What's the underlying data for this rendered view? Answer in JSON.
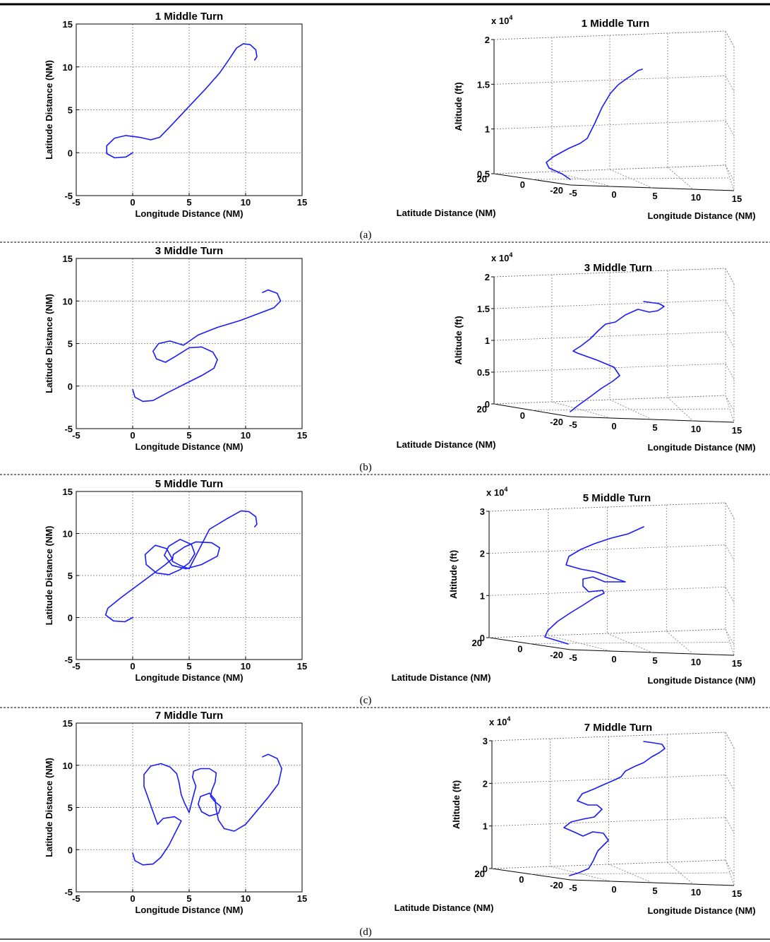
{
  "panels": [
    {
      "caption": "(a)"
    },
    {
      "caption": "(b)"
    },
    {
      "caption": "(c)"
    },
    {
      "caption": "(d)"
    }
  ],
  "chart_data": [
    {
      "type": "line",
      "title": "1 Middle Turn",
      "xlabel": "Longitude Distance (NM)",
      "ylabel": "Latitude Distance (NM)",
      "xlim": [
        -5,
        15
      ],
      "ylim": [
        -5,
        15
      ],
      "xticks": [
        "-5",
        "0",
        "5",
        "10",
        "15"
      ],
      "yticks": [
        "-5",
        "0",
        "5",
        "10",
        "15"
      ],
      "grid": true,
      "series": [
        {
          "color": "#1a1aff",
          "points": [
            [
              0,
              0
            ],
            [
              -0.6,
              -0.5
            ],
            [
              -1.6,
              -0.6
            ],
            [
              -2.3,
              -0.1
            ],
            [
              -2.3,
              0.8
            ],
            [
              -1.6,
              1.7
            ],
            [
              -0.6,
              2.0
            ],
            [
              0.6,
              1.8
            ],
            [
              1.6,
              1.5
            ],
            [
              2.4,
              1.8
            ],
            [
              3.5,
              3.3
            ],
            [
              5,
              5.4
            ],
            [
              6.5,
              7.5
            ],
            [
              7.7,
              9.3
            ],
            [
              8.6,
              11
            ],
            [
              9.2,
              12.2
            ],
            [
              9.8,
              12.7
            ],
            [
              10.4,
              12.6
            ],
            [
              10.9,
              12
            ],
            [
              11,
              11.2
            ],
            [
              10.8,
              10.8
            ]
          ]
        }
      ]
    },
    {
      "type": "line",
      "title": "1 Middle Turn",
      "xlabel": "Longitude Distance (NM)",
      "ylabel": "Latitude Distance (NM)",
      "zlabel": "Altitude (ft)",
      "zexponent": "x 10^4",
      "xticks": [
        "-5",
        "0",
        "5",
        "10",
        "15"
      ],
      "yticks": [
        "-20",
        "0",
        "20"
      ],
      "zticks": [
        "0.5",
        "1",
        "1.5",
        "2"
      ],
      "zlim": [
        0.5,
        2
      ],
      "grid": true
    },
    {
      "type": "line",
      "title": "3 Middle Turn",
      "xlabel": "Longitude Distance (NM)",
      "ylabel": "Latitude Distance (NM)",
      "xlim": [
        -5,
        15
      ],
      "ylim": [
        -5,
        15
      ],
      "xticks": [
        "-5",
        "0",
        "5",
        "10",
        "15"
      ],
      "yticks": [
        "-5",
        "0",
        "5",
        "10",
        "15"
      ],
      "grid": true,
      "series": [
        {
          "color": "#1a1aff",
          "points": [
            [
              0,
              -0.4
            ],
            [
              0.2,
              -1.3
            ],
            [
              0.9,
              -1.8
            ],
            [
              1.8,
              -1.7
            ],
            [
              3.2,
              -0.7
            ],
            [
              4.7,
              0.3
            ],
            [
              6.2,
              1.3
            ],
            [
              7.2,
              2.1
            ],
            [
              7.5,
              3.1
            ],
            [
              7.1,
              4
            ],
            [
              6.1,
              4.6
            ],
            [
              5,
              4.5
            ],
            [
              3.8,
              3.5
            ],
            [
              2.9,
              2.8
            ],
            [
              2.1,
              3.2
            ],
            [
              1.8,
              4.1
            ],
            [
              2.3,
              5
            ],
            [
              3.3,
              5.3
            ],
            [
              4.5,
              4.8
            ],
            [
              5.8,
              6
            ],
            [
              7.5,
              6.9
            ],
            [
              9.5,
              7.7
            ],
            [
              11.3,
              8.6
            ],
            [
              12.5,
              9.2
            ],
            [
              13.1,
              10
            ],
            [
              12.8,
              10.9
            ],
            [
              12,
              11.3
            ],
            [
              11.5,
              11
            ]
          ]
        }
      ]
    },
    {
      "type": "line",
      "title": "3 Middle Turn",
      "xlabel": "Longitude Distance (NM)",
      "ylabel": "Latitude Distance (NM)",
      "zlabel": "Altitude (ft)",
      "zexponent": "x 10^4",
      "xticks": [
        "-5",
        "0",
        "5",
        "10",
        "15"
      ],
      "yticks": [
        "-20",
        "0",
        "20"
      ],
      "zticks": [
        "0",
        "0.5",
        "1",
        "1.5",
        "2"
      ],
      "zlim": [
        0,
        2
      ],
      "grid": true
    },
    {
      "type": "line",
      "title": "5 Middle Turn",
      "xlabel": "Longitude Distance (NM)",
      "ylabel": "Latitude Distance (NM)",
      "xlim": [
        -5,
        15
      ],
      "ylim": [
        -5,
        15
      ],
      "xticks": [
        "-5",
        "0",
        "5",
        "10",
        "15"
      ],
      "yticks": [
        "-5",
        "0",
        "5",
        "10",
        "15"
      ],
      "grid": true,
      "series": [
        {
          "color": "#1a1aff",
          "points": [
            [
              0,
              0
            ],
            [
              -0.7,
              -0.5
            ],
            [
              -1.7,
              -0.4
            ],
            [
              -2.4,
              0.3
            ],
            [
              -2.2,
              1.1
            ],
            [
              -1,
              2.4
            ],
            [
              0.5,
              3.9
            ],
            [
              1.8,
              5.2
            ],
            [
              2.9,
              6.3
            ],
            [
              3.5,
              7
            ],
            [
              3,
              8.2
            ],
            [
              2,
              8.6
            ],
            [
              1.1,
              7.5
            ],
            [
              1.2,
              6.3
            ],
            [
              2.1,
              5.3
            ],
            [
              3.2,
              5.1
            ],
            [
              4.2,
              5.7
            ],
            [
              5,
              6.5
            ],
            [
              5.5,
              7.6
            ],
            [
              5.2,
              8.7
            ],
            [
              4.2,
              9.3
            ],
            [
              3.2,
              8.5
            ],
            [
              2.8,
              7.4
            ],
            [
              3.5,
              6.2
            ],
            [
              4.7,
              5.8
            ],
            [
              6.1,
              6.3
            ],
            [
              7.5,
              7.3
            ],
            [
              7.7,
              8.3
            ],
            [
              7,
              8.9
            ],
            [
              5.6,
              9
            ],
            [
              4.6,
              8.4
            ],
            [
              3.6,
              7.5
            ],
            [
              3.5,
              6.7
            ],
            [
              4.2,
              6.2
            ],
            [
              5,
              5.8
            ],
            [
              6.8,
              10.5
            ],
            [
              8.4,
              11.8
            ],
            [
              9.6,
              12.7
            ],
            [
              10.3,
              12.6
            ],
            [
              10.9,
              12
            ],
            [
              11,
              11.1
            ],
            [
              10.8,
              10.8
            ]
          ]
        }
      ]
    },
    {
      "type": "line",
      "title": "5 Middle Turn",
      "xlabel": "Longitude Distance (NM)",
      "ylabel": "Latitude Distance (NM)",
      "zlabel": "Altitude (ft)",
      "zexponent": "x 10^4",
      "xticks": [
        "-5",
        "0",
        "5",
        "10",
        "15"
      ],
      "yticks": [
        "-20",
        "0",
        "20"
      ],
      "zticks": [
        "0",
        "1",
        "2",
        "3"
      ],
      "zlim": [
        0,
        3
      ],
      "grid": true
    },
    {
      "type": "line",
      "title": "7 Middle Turn",
      "xlabel": "Longitude Distance (NM)",
      "ylabel": "Latitude Distance (NM)",
      "xlim": [
        -5,
        15
      ],
      "ylim": [
        -5,
        15
      ],
      "xticks": [
        "-5",
        "0",
        "5",
        "10",
        "15"
      ],
      "yticks": [
        "-5",
        "0",
        "5",
        "10",
        "15"
      ],
      "grid": true,
      "series": [
        {
          "color": "#1a1aff",
          "points": [
            [
              0,
              -0.4
            ],
            [
              0.2,
              -1.3
            ],
            [
              0.9,
              -1.8
            ],
            [
              1.8,
              -1.7
            ],
            [
              2.5,
              -0.9
            ],
            [
              3.2,
              0.5
            ],
            [
              3.8,
              2.1
            ],
            [
              4.3,
              3.4
            ],
            [
              3.7,
              3.9
            ],
            [
              2.7,
              3.7
            ],
            [
              2.2,
              3
            ],
            [
              1.8,
              4.5
            ],
            [
              1.4,
              6
            ],
            [
              1,
              7.5
            ],
            [
              1,
              8.9
            ],
            [
              1.6,
              9.9
            ],
            [
              2.5,
              10.2
            ],
            [
              3.3,
              9.8
            ],
            [
              3.9,
              9
            ],
            [
              4.1,
              8
            ],
            [
              4.3,
              6.5
            ],
            [
              4.6,
              5.5
            ],
            [
              5,
              4.4
            ],
            [
              5.3,
              6
            ],
            [
              5.6,
              7.5
            ],
            [
              5.3,
              8.6
            ],
            [
              5.4,
              9.3
            ],
            [
              6,
              9.6
            ],
            [
              6.8,
              9.6
            ],
            [
              7.4,
              9.1
            ],
            [
              7.3,
              8
            ],
            [
              7,
              7
            ],
            [
              6.9,
              6.3
            ],
            [
              7.2,
              5.8
            ],
            [
              7.8,
              5.1
            ],
            [
              7.6,
              4.3
            ],
            [
              6.8,
              4
            ],
            [
              6.1,
              4.5
            ],
            [
              5.8,
              5.4
            ],
            [
              6,
              6.3
            ],
            [
              6.8,
              6.7
            ],
            [
              7.3,
              5.9
            ],
            [
              7.4,
              4.7
            ],
            [
              7.6,
              3.5
            ],
            [
              8.1,
              2.5
            ],
            [
              9,
              2.2
            ],
            [
              10,
              3
            ],
            [
              11,
              4.6
            ],
            [
              12,
              6.2
            ],
            [
              12.9,
              7.8
            ],
            [
              13.2,
              9.6
            ],
            [
              12.8,
              10.8
            ],
            [
              12,
              11.3
            ],
            [
              11.5,
              11
            ]
          ]
        }
      ]
    },
    {
      "type": "line",
      "title": "7 Middle Turn",
      "xlabel": "Longitude Distance (NM)",
      "ylabel": "Latitude Distance (NM)",
      "zlabel": "Altitude (ft)",
      "zexponent": "x 10^4",
      "xticks": [
        "-5",
        "0",
        "5",
        "10",
        "15"
      ],
      "yticks": [
        "-20",
        "0",
        "20"
      ],
      "zticks": [
        "0",
        "1",
        "2",
        "3"
      ],
      "zlim": [
        0,
        3
      ],
      "grid": true
    }
  ]
}
